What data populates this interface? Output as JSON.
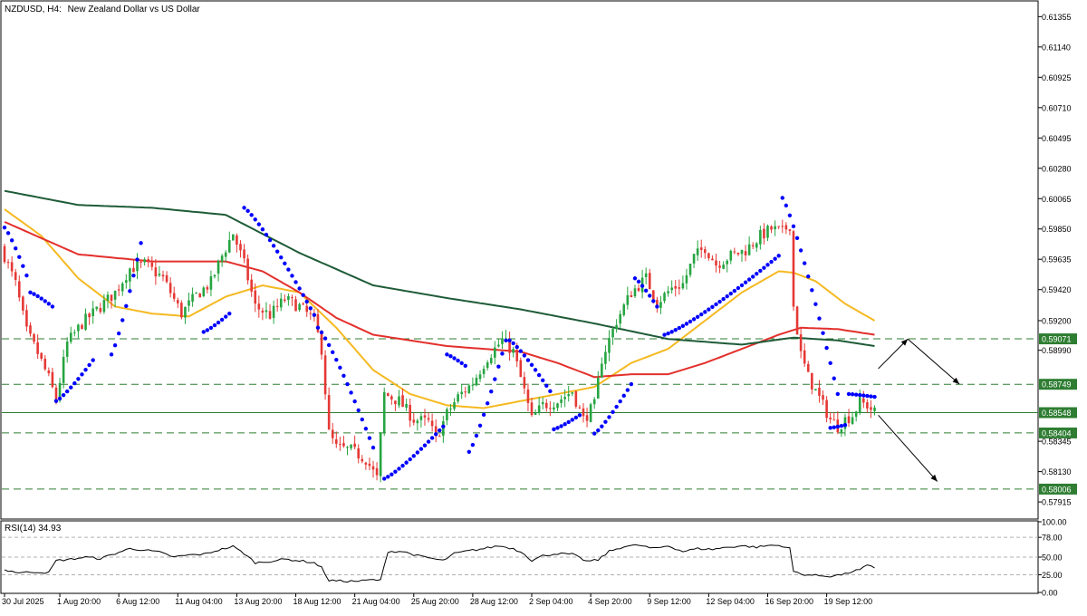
{
  "header": {
    "symbol": "NZDUSD, H4:",
    "description": "New Zealand Dollar vs US Dollar"
  },
  "colors": {
    "bull_candle": "#26a541",
    "bear_candle": "#e53935",
    "sar_dots": "#0000ff",
    "ma_fast": "#f5b921",
    "ma_mid": "#e3302c",
    "ma_slow": "#1e5b37",
    "support_resistance_lines": "#2e7d32",
    "current_price_line": "#2e7d32",
    "rsi_line": "#000000",
    "arrows": "#000000",
    "price_label_fill": "#2e7d32"
  },
  "chart_data": [
    {
      "type": "candlestick",
      "title": "NZDUSD, H4:  New Zealand Dollar vs US Dollar",
      "ylim": [
        0.578,
        0.6146
      ],
      "y_ticks": [
        "0.61355",
        "0.61140",
        "0.60925",
        "0.60710",
        "0.60495",
        "0.60280",
        "0.60065",
        "0.59850",
        "0.59635",
        "0.59420",
        "0.59200",
        "0.58990",
        "0.58345",
        "0.58130",
        "0.57915"
      ],
      "y_tick_values": [
        0.61355,
        0.6114,
        0.60925,
        0.6071,
        0.60495,
        0.6028,
        0.60065,
        0.5985,
        0.59635,
        0.5942,
        0.592,
        0.5899,
        0.58345,
        0.5813,
        0.57915
      ],
      "x_ticks": [
        "30 Jul 2025",
        "1 Aug 20:00",
        "6 Aug 12:00",
        "11 Aug 04:00",
        "13 Aug 20:00",
        "18 Aug 12:00",
        "21 Aug 04:00",
        "25 Aug 20:00",
        "28 Aug 12:00",
        "2 Sep 04:00",
        "4 Sep 20:00",
        "9 Sep 12:00",
        "12 Sep 04:00",
        "16 Sep 20:00",
        "19 Sep 12:00"
      ],
      "x_tick_bars": [
        0,
        15,
        31,
        47,
        63,
        79,
        95,
        111,
        127,
        143,
        159,
        175,
        191,
        207,
        223
      ],
      "price_levels": [
        {
          "label": "0.59071",
          "value": 0.59071,
          "style": "dashed"
        },
        {
          "label": "0.58749",
          "value": 0.58749,
          "style": "dashed"
        },
        {
          "label": "0.58548",
          "value": 0.58548,
          "style": "solid"
        },
        {
          "label": "0.58404",
          "value": 0.58404,
          "style": "dashed"
        },
        {
          "label": "0.58006",
          "value": 0.58006,
          "style": "dashed"
        }
      ],
      "current_price": 0.58548,
      "anchors": {
        "comment": "approximate close-price path read from the chart, as [bar_index, price]",
        "points": [
          [
            0,
            0.5966
          ],
          [
            3,
            0.5946
          ],
          [
            6,
            0.5912
          ],
          [
            9,
            0.5897
          ],
          [
            12,
            0.5879
          ],
          [
            14,
            0.5864
          ],
          [
            17,
            0.5904
          ],
          [
            21,
            0.5918
          ],
          [
            26,
            0.593
          ],
          [
            30,
            0.594
          ],
          [
            34,
            0.5957
          ],
          [
            38,
            0.596
          ],
          [
            43,
            0.595
          ],
          [
            48,
            0.5925
          ],
          [
            52,
            0.5938
          ],
          [
            56,
            0.5947
          ],
          [
            59,
            0.5966
          ],
          [
            62,
            0.5982
          ],
          [
            65,
            0.596
          ],
          [
            68,
            0.593
          ],
          [
            72,
            0.5924
          ],
          [
            76,
            0.5935
          ],
          [
            80,
            0.593
          ],
          [
            84,
            0.592
          ],
          [
            86,
            0.59
          ],
          [
            88,
            0.584
          ],
          [
            90,
            0.583
          ],
          [
            94,
            0.5828
          ],
          [
            98,
            0.5822
          ],
          [
            101,
            0.5808
          ],
          [
            103,
            0.5868
          ],
          [
            107,
            0.5863
          ],
          [
            111,
            0.585
          ],
          [
            115,
            0.5848
          ],
          [
            117,
            0.5836
          ],
          [
            120,
            0.5854
          ],
          [
            123,
            0.5866
          ],
          [
            127,
            0.5876
          ],
          [
            131,
            0.5894
          ],
          [
            135,
            0.5906
          ],
          [
            138,
            0.5898
          ],
          [
            141,
            0.587
          ],
          [
            143,
            0.585
          ],
          [
            146,
            0.586
          ],
          [
            150,
            0.5863
          ],
          [
            154,
            0.587
          ],
          [
            157,
            0.585
          ],
          [
            160,
            0.586
          ],
          [
            162,
            0.5893
          ],
          [
            166,
            0.592
          ],
          [
            170,
            0.594
          ],
          [
            174,
            0.595
          ],
          [
            177,
            0.5933
          ],
          [
            181,
            0.5943
          ],
          [
            184,
            0.5946
          ],
          [
            187,
            0.5965
          ],
          [
            190,
            0.5972
          ],
          [
            193,
            0.596
          ],
          [
            197,
            0.5966
          ],
          [
            201,
            0.597
          ],
          [
            205,
            0.598
          ],
          [
            208,
            0.5985
          ],
          [
            211,
            0.5983
          ],
          [
            213,
            0.5988
          ],
          [
            214,
            0.593
          ],
          [
            216,
            0.5896
          ],
          [
            218,
            0.588
          ],
          [
            220,
            0.587
          ],
          [
            222,
            0.586
          ],
          [
            224,
            0.585
          ],
          [
            226,
            0.5845
          ],
          [
            228,
            0.585
          ],
          [
            230,
            0.5853
          ],
          [
            232,
            0.5862
          ],
          [
            234,
            0.586
          ],
          [
            236,
            0.5855
          ]
        ],
        "bar_count": 237
      },
      "moving_averages": [
        {
          "color_key": "ma_fast",
          "points": [
            [
              0,
              0.5999
            ],
            [
              10,
              0.598
            ],
            [
              20,
              0.595
            ],
            [
              30,
              0.593
            ],
            [
              40,
              0.5925
            ],
            [
              50,
              0.5923
            ],
            [
              60,
              0.5937
            ],
            [
              70,
              0.5945
            ],
            [
              80,
              0.594
            ],
            [
              90,
              0.5915
            ],
            [
              100,
              0.5885
            ],
            [
              110,
              0.5868
            ],
            [
              120,
              0.586
            ],
            [
              130,
              0.5858
            ],
            [
              140,
              0.5863
            ],
            [
              150,
              0.5868
            ],
            [
              160,
              0.5873
            ],
            [
              170,
              0.589
            ],
            [
              180,
              0.59
            ],
            [
              190,
              0.592
            ],
            [
              200,
              0.594
            ],
            [
              210,
              0.5955
            ],
            [
              214,
              0.5954
            ],
            [
              220,
              0.5948
            ],
            [
              228,
              0.5932
            ],
            [
              236,
              0.592
            ]
          ]
        },
        {
          "color_key": "ma_mid",
          "points": [
            [
              0,
              0.599
            ],
            [
              20,
              0.5967
            ],
            [
              40,
              0.5962
            ],
            [
              60,
              0.5962
            ],
            [
              70,
              0.5955
            ],
            [
              80,
              0.594
            ],
            [
              90,
              0.5922
            ],
            [
              100,
              0.591
            ],
            [
              120,
              0.5902
            ],
            [
              140,
              0.5898
            ],
            [
              150,
              0.589
            ],
            [
              160,
              0.588
            ],
            [
              170,
              0.5882
            ],
            [
              180,
              0.5882
            ],
            [
              190,
              0.589
            ],
            [
              200,
              0.59
            ],
            [
              210,
              0.591
            ],
            [
              216,
              0.5915
            ],
            [
              226,
              0.5914
            ],
            [
              236,
              0.591
            ]
          ]
        },
        {
          "color_key": "ma_slow",
          "points": [
            [
              0,
              0.6012
            ],
            [
              20,
              0.6002
            ],
            [
              40,
              0.6
            ],
            [
              60,
              0.5995
            ],
            [
              80,
              0.5968
            ],
            [
              100,
              0.5945
            ],
            [
              120,
              0.5936
            ],
            [
              140,
              0.5928
            ],
            [
              160,
              0.5918
            ],
            [
              180,
              0.5907
            ],
            [
              200,
              0.5903
            ],
            [
              214,
              0.5908
            ],
            [
              226,
              0.5906
            ],
            [
              236,
              0.5902
            ]
          ]
        }
      ],
      "sar": {
        "comment": "approximate Parabolic SAR segments as [start_bar, end_bar, start_price, end_price]",
        "segments": [
          [
            0,
            6,
            0.5986,
            0.5952
          ],
          [
            7,
            13,
            0.594,
            0.593
          ],
          [
            14,
            24,
            0.5863,
            0.5892
          ],
          [
            29,
            37,
            0.5896,
            0.5975
          ],
          [
            54,
            61,
            0.5912,
            0.5925
          ],
          [
            65,
            84,
            0.6,
            0.5924
          ],
          [
            85,
            100,
            0.5915,
            0.583
          ],
          [
            103,
            119,
            0.5808,
            0.5845
          ],
          [
            120,
            125,
            0.5896,
            0.5888
          ],
          [
            126,
            136,
            0.5827,
            0.5906
          ],
          [
            137,
            148,
            0.5906,
            0.587
          ],
          [
            149,
            156,
            0.5843,
            0.5853
          ],
          [
            160,
            170,
            0.584,
            0.5875
          ],
          [
            171,
            177,
            0.595,
            0.593
          ],
          [
            179,
            210,
            0.591,
            0.5966
          ],
          [
            211,
            226,
            0.6007,
            0.5868
          ],
          [
            224,
            228,
            0.5844,
            0.5846
          ],
          [
            229,
            236,
            0.5868,
            0.5866
          ]
        ]
      },
      "annotations": [
        {
          "type": "arrow",
          "from": [
            237,
            0.5886
          ],
          "to": [
            245,
            0.5907
          ]
        },
        {
          "type": "arrow",
          "from": [
            245,
            0.5907
          ],
          "to": [
            259,
            0.5875
          ]
        },
        {
          "type": "arrow",
          "from": [
            237,
            0.5853
          ],
          "to": [
            253,
            0.5806
          ]
        }
      ]
    },
    {
      "type": "line",
      "title": "RSI(14) 34.93",
      "ylim": [
        0,
        100
      ],
      "y_ticks": [
        "100.00",
        "78.00",
        "50.00",
        "25.00",
        "0.00"
      ],
      "y_tick_values": [
        100,
        78,
        50,
        25,
        0
      ],
      "levels": [
        78,
        50,
        25
      ],
      "points": [
        [
          0,
          32
        ],
        [
          4,
          28
        ],
        [
          8,
          29
        ],
        [
          12,
          28
        ],
        [
          14,
          45
        ],
        [
          18,
          47
        ],
        [
          22,
          50
        ],
        [
          26,
          48
        ],
        [
          30,
          55
        ],
        [
          34,
          62
        ],
        [
          38,
          60
        ],
        [
          42,
          57
        ],
        [
          46,
          50
        ],
        [
          50,
          53
        ],
        [
          54,
          54
        ],
        [
          58,
          60
        ],
        [
          62,
          65
        ],
        [
          65,
          55
        ],
        [
          68,
          42
        ],
        [
          72,
          44
        ],
        [
          76,
          47
        ],
        [
          80,
          45
        ],
        [
          84,
          42
        ],
        [
          86,
          35
        ],
        [
          88,
          17
        ],
        [
          92,
          16
        ],
        [
          96,
          16
        ],
        [
          100,
          18
        ],
        [
          102,
          17
        ],
        [
          104,
          58
        ],
        [
          108,
          58
        ],
        [
          112,
          52
        ],
        [
          116,
          48
        ],
        [
          119,
          45
        ],
        [
          122,
          55
        ],
        [
          126,
          59
        ],
        [
          130,
          62
        ],
        [
          134,
          66
        ],
        [
          138,
          62
        ],
        [
          141,
          55
        ],
        [
          143,
          45
        ],
        [
          146,
          52
        ],
        [
          150,
          55
        ],
        [
          154,
          54
        ],
        [
          158,
          44
        ],
        [
          161,
          46
        ],
        [
          164,
          58
        ],
        [
          168,
          65
        ],
        [
          172,
          67
        ],
        [
          176,
          62
        ],
        [
          180,
          66
        ],
        [
          184,
          58
        ],
        [
          188,
          62
        ],
        [
          192,
          61
        ],
        [
          196,
          64
        ],
        [
          200,
          66
        ],
        [
          204,
          64
        ],
        [
          208,
          67
        ],
        [
          211,
          66
        ],
        [
          213,
          62
        ],
        [
          214,
          30
        ],
        [
          216,
          26
        ],
        [
          220,
          24
        ],
        [
          224,
          23
        ],
        [
          228,
          26
        ],
        [
          230,
          30
        ],
        [
          232,
          32
        ],
        [
          234,
          38
        ],
        [
          236,
          35
        ]
      ]
    }
  ]
}
